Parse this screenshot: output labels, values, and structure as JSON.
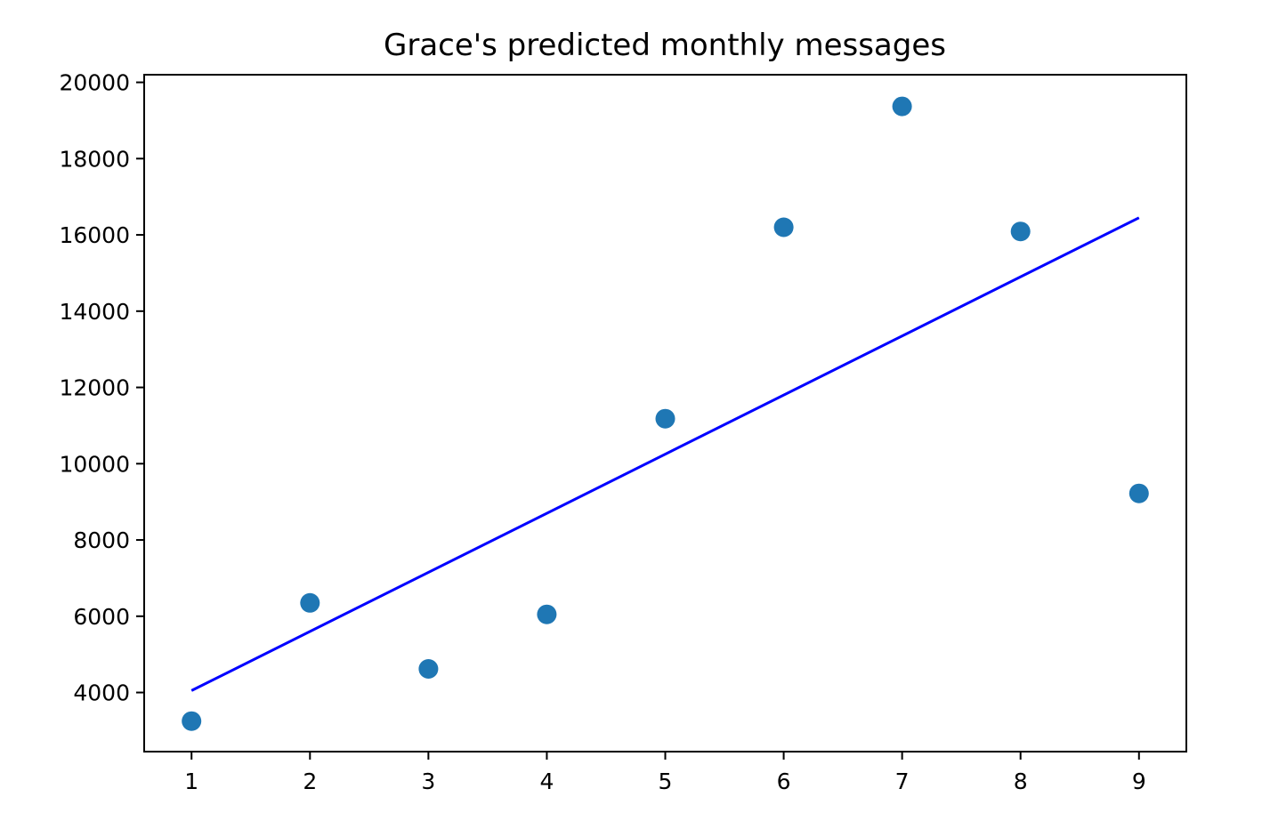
{
  "chart_data": {
    "type": "scatter",
    "title": "Grace's predicted monthly messages",
    "xlabel": "",
    "ylabel": "",
    "xlim": [
      0.6,
      9.4
    ],
    "ylim": [
      2450,
      20200
    ],
    "x_ticks": [
      1,
      2,
      3,
      4,
      5,
      6,
      7,
      8,
      9
    ],
    "y_ticks": [
      4000,
      6000,
      8000,
      10000,
      12000,
      14000,
      16000,
      18000,
      20000
    ],
    "grid": false,
    "series": [
      {
        "type": "scatter",
        "color": "#1f77b4",
        "points": [
          {
            "x": 1,
            "y": 3250
          },
          {
            "x": 2,
            "y": 6350
          },
          {
            "x": 3,
            "y": 4620
          },
          {
            "x": 4,
            "y": 6050
          },
          {
            "x": 5,
            "y": 11180
          },
          {
            "x": 6,
            "y": 16200
          },
          {
            "x": 7,
            "y": 19370
          },
          {
            "x": 8,
            "y": 16090
          },
          {
            "x": 9,
            "y": 9220
          }
        ]
      },
      {
        "type": "line",
        "color": "#0000ff",
        "points": [
          {
            "x": 1,
            "y": 4050
          },
          {
            "x": 9,
            "y": 16450
          }
        ]
      }
    ]
  }
}
